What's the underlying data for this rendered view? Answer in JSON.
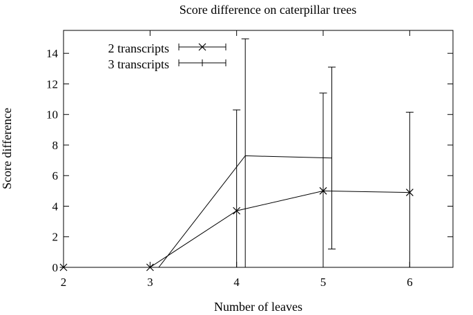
{
  "chart_data": {
    "type": "line",
    "title": "Score difference on caterpillar trees",
    "xlabel": "Number of leaves",
    "ylabel": "Score difference",
    "xlim": [
      2,
      6.5
    ],
    "ylim": [
      0,
      15.5
    ],
    "x_ticks": [
      2,
      3,
      4,
      5,
      6
    ],
    "y_ticks": [
      0,
      2,
      4,
      6,
      8,
      10,
      12,
      14
    ],
    "grid": false,
    "legend_position": "top-left",
    "series": [
      {
        "name": "2 transcripts",
        "marker": "x",
        "points": [
          {
            "x": 2,
            "y": 0,
            "err_low": 0,
            "err_high": 0
          },
          {
            "x": 3,
            "y": 0,
            "err_low": 0,
            "err_high": 0
          },
          {
            "x": 4,
            "y": 3.7,
            "err_low": 0,
            "err_high": 10.3
          },
          {
            "x": 5,
            "y": 5.0,
            "err_low": 0,
            "err_high": 11.4
          },
          {
            "x": 6,
            "y": 4.9,
            "err_low": 0,
            "err_high": 10.15
          }
        ]
      },
      {
        "name": "3 transcripts",
        "marker": "none",
        "points": [
          {
            "x": 3.1,
            "y": 0,
            "err_low": 0,
            "err_high": 0
          },
          {
            "x": 4.1,
            "y": 7.3,
            "err_low": 0,
            "err_high": 14.95
          },
          {
            "x": 5.1,
            "y": 7.15,
            "err_low": 1.2,
            "err_high": 13.1
          }
        ]
      }
    ]
  }
}
